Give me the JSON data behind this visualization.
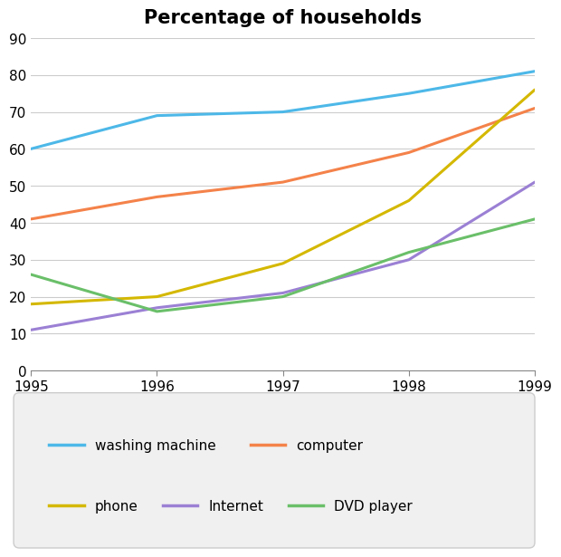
{
  "title": "Percentage of households",
  "title_fontsize": 15,
  "title_fontweight": "bold",
  "years": [
    1995,
    1996,
    1997,
    1998,
    1999
  ],
  "series": {
    "washing machine": {
      "values": [
        60,
        69,
        70,
        75,
        81
      ],
      "color": "#4db8e8",
      "linewidth": 2.2
    },
    "computer": {
      "values": [
        41,
        47,
        51,
        59,
        71
      ],
      "color": "#f4824a",
      "linewidth": 2.2
    },
    "phone": {
      "values": [
        18,
        20,
        29,
        46,
        76
      ],
      "color": "#d4b800",
      "linewidth": 2.2
    },
    "Internet": {
      "values": [
        11,
        17,
        21,
        30,
        51
      ],
      "color": "#9b80d4",
      "linewidth": 2.2
    },
    "DVD player": {
      "values": [
        26,
        16,
        20,
        32,
        41
      ],
      "color": "#6abf69",
      "linewidth": 2.2
    }
  },
  "xlim": [
    1995,
    1999
  ],
  "ylim": [
    0,
    90
  ],
  "yticks": [
    0,
    10,
    20,
    30,
    40,
    50,
    60,
    70,
    80,
    90
  ],
  "xticks": [
    1995,
    1996,
    1997,
    1998,
    1999
  ],
  "grid_color": "#cccccc",
  "grid_linewidth": 0.8,
  "background_color": "#ffffff",
  "legend_row1": [
    "washing machine",
    "computer"
  ],
  "legend_row2": [
    "phone",
    "Internet",
    "DVD player"
  ],
  "legend_bg": "#f0f0f0",
  "legend_edge": "#cccccc"
}
